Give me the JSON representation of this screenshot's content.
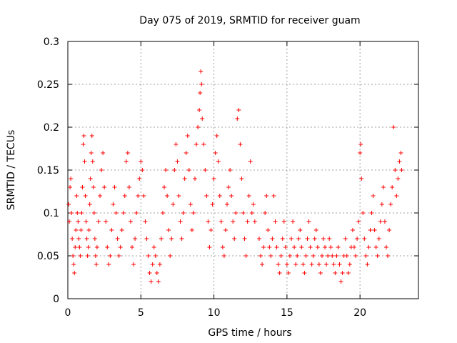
{
  "chart_data": {
    "type": "scatter",
    "title": "Day 075 of 2019, SRMTID for receiver guam",
    "xlabel": "GPS time / hours",
    "ylabel": "SRMTID / TECUs",
    "xlim": [
      0,
      24
    ],
    "ylim": [
      0,
      0.3
    ],
    "x_ticks": [
      0,
      5,
      10,
      15,
      20
    ],
    "y_ticks": [
      0,
      0.05,
      0.1,
      0.15,
      0.2,
      0.25,
      0.3
    ],
    "x_tick_labels": [
      "0",
      "5",
      "10",
      "15",
      "20"
    ],
    "y_tick_labels": [
      "0",
      "0.05",
      "0.1",
      "0.15",
      "0.2",
      "0.25",
      "0.3"
    ],
    "grid": true,
    "legend": "none",
    "marker": "plus",
    "color": "#ff0000",
    "series": [
      {
        "points": [
          [
            0.05,
            0.11
          ],
          [
            0.1,
            0.09
          ],
          [
            0.15,
            0.13
          ],
          [
            0.2,
            0.14
          ],
          [
            0.25,
            0.1
          ],
          [
            0.3,
            0.07
          ],
          [
            0.35,
            0.05
          ],
          [
            0.4,
            0.04
          ],
          [
            0.45,
            0.03
          ],
          [
            0.5,
            0.06
          ],
          [
            0.55,
            0.08
          ],
          [
            0.6,
            0.12
          ],
          [
            0.65,
            0.1
          ],
          [
            0.7,
            0.09
          ],
          [
            0.75,
            0.07
          ],
          [
            0.8,
            0.06
          ],
          [
            0.85,
            0.05
          ],
          [
            0.9,
            0.08
          ],
          [
            0.95,
            0.1
          ],
          [
            1.0,
            0.13
          ],
          [
            1.05,
            0.18
          ],
          [
            1.1,
            0.19
          ],
          [
            1.15,
            0.16
          ],
          [
            1.2,
            0.12
          ],
          [
            1.25,
            0.09
          ],
          [
            1.3,
            0.07
          ],
          [
            1.35,
            0.05
          ],
          [
            1.4,
            0.06
          ],
          [
            1.45,
            0.08
          ],
          [
            1.5,
            0.11
          ],
          [
            1.55,
            0.14
          ],
          [
            1.6,
            0.17
          ],
          [
            1.65,
            0.19
          ],
          [
            1.7,
            0.16
          ],
          [
            1.75,
            0.13
          ],
          [
            1.8,
            0.1
          ],
          [
            1.85,
            0.07
          ],
          [
            1.9,
            0.05
          ],
          [
            1.95,
            0.04
          ],
          [
            2.0,
            0.06
          ],
          [
            2.1,
            0.09
          ],
          [
            2.2,
            0.12
          ],
          [
            2.3,
            0.15
          ],
          [
            2.4,
            0.17
          ],
          [
            2.5,
            0.13
          ],
          [
            2.6,
            0.09
          ],
          [
            2.7,
            0.06
          ],
          [
            2.8,
            0.04
          ],
          [
            2.9,
            0.05
          ],
          [
            3.0,
            0.08
          ],
          [
            3.1,
            0.11
          ],
          [
            3.2,
            0.13
          ],
          [
            3.3,
            0.1
          ],
          [
            3.4,
            0.07
          ],
          [
            3.5,
            0.05
          ],
          [
            3.6,
            0.06
          ],
          [
            3.7,
            0.08
          ],
          [
            3.8,
            0.1
          ],
          [
            3.9,
            0.12
          ],
          [
            4.0,
            0.16
          ],
          [
            4.1,
            0.17
          ],
          [
            4.2,
            0.13
          ],
          [
            4.3,
            0.09
          ],
          [
            4.4,
            0.06
          ],
          [
            4.5,
            0.04
          ],
          [
            4.6,
            0.07
          ],
          [
            4.7,
            0.1
          ],
          [
            4.8,
            0.12
          ],
          [
            4.9,
            0.14
          ],
          [
            5.0,
            0.16
          ],
          [
            5.1,
            0.15
          ],
          [
            5.2,
            0.12
          ],
          [
            5.3,
            0.09
          ],
          [
            5.4,
            0.07
          ],
          [
            5.5,
            0.05
          ],
          [
            5.6,
            0.03
          ],
          [
            5.7,
            0.02
          ],
          [
            5.8,
            0.04
          ],
          [
            5.9,
            0.06
          ],
          [
            6.0,
            0.05
          ],
          [
            6.1,
            0.03
          ],
          [
            6.2,
            0.02
          ],
          [
            6.3,
            0.04
          ],
          [
            6.4,
            0.07
          ],
          [
            6.5,
            0.1
          ],
          [
            6.6,
            0.13
          ],
          [
            6.7,
            0.15
          ],
          [
            6.8,
            0.12
          ],
          [
            6.9,
            0.08
          ],
          [
            7.0,
            0.05
          ],
          [
            7.1,
            0.07
          ],
          [
            7.2,
            0.11
          ],
          [
            7.3,
            0.15
          ],
          [
            7.4,
            0.18
          ],
          [
            7.5,
            0.16
          ],
          [
            7.6,
            0.12
          ],
          [
            7.7,
            0.09
          ],
          [
            7.8,
            0.07
          ],
          [
            7.9,
            0.1
          ],
          [
            8.0,
            0.14
          ],
          [
            8.1,
            0.17
          ],
          [
            8.2,
            0.19
          ],
          [
            8.3,
            0.15
          ],
          [
            8.4,
            0.11
          ],
          [
            8.5,
            0.08
          ],
          [
            8.6,
            0.1
          ],
          [
            8.7,
            0.14
          ],
          [
            8.8,
            0.18
          ],
          [
            8.9,
            0.2
          ],
          [
            9.0,
            0.22
          ],
          [
            9.05,
            0.24
          ],
          [
            9.1,
            0.265
          ],
          [
            9.15,
            0.25
          ],
          [
            9.2,
            0.21
          ],
          [
            9.3,
            0.18
          ],
          [
            9.4,
            0.15
          ],
          [
            9.5,
            0.12
          ],
          [
            9.6,
            0.09
          ],
          [
            9.7,
            0.06
          ],
          [
            9.8,
            0.08
          ],
          [
            9.9,
            0.11
          ],
          [
            10.0,
            0.14
          ],
          [
            10.1,
            0.17
          ],
          [
            10.2,
            0.19
          ],
          [
            10.3,
            0.16
          ],
          [
            10.4,
            0.12
          ],
          [
            10.5,
            0.09
          ],
          [
            10.6,
            0.06
          ],
          [
            10.7,
            0.05
          ],
          [
            10.8,
            0.08
          ],
          [
            10.9,
            0.11
          ],
          [
            11.0,
            0.13
          ],
          [
            11.1,
            0.15
          ],
          [
            11.2,
            0.12
          ],
          [
            11.3,
            0.09
          ],
          [
            11.4,
            0.07
          ],
          [
            11.5,
            0.1
          ],
          [
            11.6,
            0.21
          ],
          [
            11.7,
            0.22
          ],
          [
            11.8,
            0.18
          ],
          [
            11.9,
            0.14
          ],
          [
            12.0,
            0.1
          ],
          [
            12.1,
            0.07
          ],
          [
            12.2,
            0.05
          ],
          [
            12.3,
            0.09
          ],
          [
            12.4,
            0.12
          ],
          [
            12.5,
            0.16
          ],
          [
            12.6,
            0.1
          ],
          [
            12.7,
            0.11
          ],
          [
            12.8,
            0.09
          ],
          [
            13.1,
            0.07
          ],
          [
            13.2,
            0.05
          ],
          [
            13.3,
            0.04
          ],
          [
            13.4,
            0.06
          ],
          [
            13.5,
            0.1
          ],
          [
            13.6,
            0.12
          ],
          [
            13.7,
            0.08
          ],
          [
            13.8,
            0.06
          ],
          [
            13.9,
            0.05
          ],
          [
            14.0,
            0.07
          ],
          [
            14.1,
            0.12
          ],
          [
            14.2,
            0.09
          ],
          [
            14.3,
            0.06
          ],
          [
            14.4,
            0.04
          ],
          [
            14.5,
            0.03
          ],
          [
            14.6,
            0.05
          ],
          [
            14.7,
            0.07
          ],
          [
            14.8,
            0.09
          ],
          [
            14.9,
            0.06
          ],
          [
            15.0,
            0.04
          ],
          [
            15.1,
            0.03
          ],
          [
            15.2,
            0.05
          ],
          [
            15.3,
            0.07
          ],
          [
            15.4,
            0.09
          ],
          [
            15.5,
            0.06
          ],
          [
            15.6,
            0.04
          ],
          [
            15.7,
            0.05
          ],
          [
            15.8,
            0.07
          ],
          [
            15.9,
            0.08
          ],
          [
            16.0,
            0.06
          ],
          [
            16.1,
            0.04
          ],
          [
            16.2,
            0.03
          ],
          [
            16.3,
            0.05
          ],
          [
            16.4,
            0.07
          ],
          [
            16.5,
            0.09
          ],
          [
            16.6,
            0.06
          ],
          [
            16.7,
            0.04
          ],
          [
            16.8,
            0.05
          ],
          [
            16.9,
            0.07
          ],
          [
            17.0,
            0.08
          ],
          [
            17.1,
            0.06
          ],
          [
            17.2,
            0.04
          ],
          [
            17.3,
            0.03
          ],
          [
            17.4,
            0.05
          ],
          [
            17.5,
            0.07
          ],
          [
            17.6,
            0.06
          ],
          [
            17.7,
            0.04
          ],
          [
            17.8,
            0.05
          ],
          [
            17.9,
            0.07
          ],
          [
            18.0,
            0.06
          ],
          [
            18.1,
            0.05
          ],
          [
            18.2,
            0.04
          ],
          [
            18.3,
            0.03
          ],
          [
            18.4,
            0.05
          ],
          [
            18.5,
            0.06
          ],
          [
            18.6,
            0.04
          ],
          [
            18.7,
            0.02
          ],
          [
            18.8,
            0.03
          ],
          [
            18.9,
            0.05
          ],
          [
            19.0,
            0.07
          ],
          [
            19.1,
            0.05
          ],
          [
            19.2,
            0.03
          ],
          [
            19.3,
            0.04
          ],
          [
            19.4,
            0.06
          ],
          [
            19.5,
            0.08
          ],
          [
            19.6,
            0.06
          ],
          [
            19.7,
            0.05
          ],
          [
            19.8,
            0.07
          ],
          [
            19.9,
            0.09
          ],
          [
            20.0,
            0.17
          ],
          [
            20.05,
            0.18
          ],
          [
            20.1,
            0.14
          ],
          [
            20.2,
            0.1
          ],
          [
            20.3,
            0.07
          ],
          [
            20.4,
            0.05
          ],
          [
            20.5,
            0.04
          ],
          [
            20.6,
            0.06
          ],
          [
            20.7,
            0.08
          ],
          [
            20.8,
            0.1
          ],
          [
            20.9,
            0.12
          ],
          [
            21.0,
            0.08
          ],
          [
            21.1,
            0.06
          ],
          [
            21.2,
            0.05
          ],
          [
            21.3,
            0.07
          ],
          [
            21.4,
            0.09
          ],
          [
            21.5,
            0.11
          ],
          [
            21.6,
            0.13
          ],
          [
            21.7,
            0.09
          ],
          [
            21.8,
            0.06
          ],
          [
            21.9,
            0.05
          ],
          [
            22.0,
            0.08
          ],
          [
            22.1,
            0.11
          ],
          [
            22.2,
            0.13
          ],
          [
            22.3,
            0.2
          ],
          [
            22.4,
            0.15
          ],
          [
            22.5,
            0.12
          ],
          [
            22.6,
            0.14
          ],
          [
            22.7,
            0.16
          ],
          [
            22.8,
            0.17
          ],
          [
            22.85,
            0.15
          ]
        ]
      }
    ]
  }
}
